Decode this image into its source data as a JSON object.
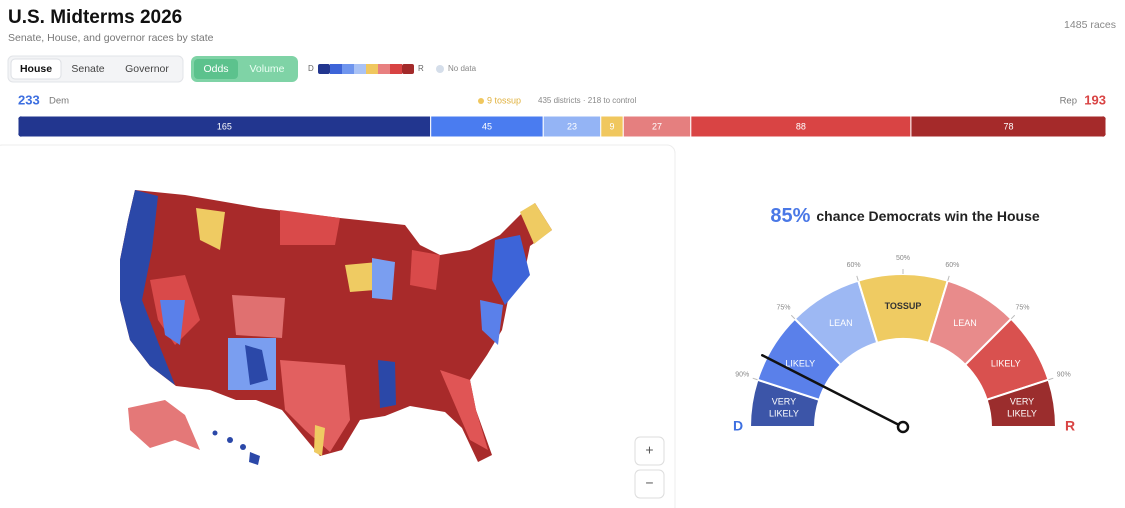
{
  "header": {
    "title": "U.S. Midterms 2026",
    "subtitle": "Senate, House, and governor races by state",
    "race_count": "1485 races"
  },
  "tabs": [
    "House",
    "Senate",
    "Governor"
  ],
  "mode_toggle": [
    "Odds",
    "Volume"
  ],
  "legend": {
    "left": "D",
    "right": "R",
    "colors": [
      "#22368f",
      "#3d64d8",
      "#6f95ee",
      "#a9c2f5",
      "#f0c75e",
      "#e88080",
      "#d84343",
      "#a32a2a"
    ],
    "no_data": "No data",
    "no_data_color": "#d5deea"
  },
  "summary": {
    "dem_count": 233,
    "dem_label": "Dem",
    "tossup": "9 tossup",
    "districts": "435 districts · 218 to control",
    "rep_label": "Rep",
    "rep_count": 193
  },
  "seat_bar": {
    "segments": [
      {
        "value": 165,
        "color": "#22368f"
      },
      {
        "value": 45,
        "color": "#4a7cf0"
      },
      {
        "value": 23,
        "color": "#94b4f5"
      },
      {
        "value": 9,
        "color": "#f0c75e"
      },
      {
        "value": 27,
        "color": "#e57f7f"
      },
      {
        "value": 88,
        "color": "#d94444"
      },
      {
        "value": 78,
        "color": "#a52a2a"
      }
    ]
  },
  "map_controls": [
    "+",
    "−"
  ],
  "gauge": {
    "probability": {
      "value": 85,
      "label": "85%"
    },
    "headline": "chance Democrats win the House",
    "segments": [
      {
        "lines": [
          "VERY",
          "LIKELY"
        ],
        "color": "#3c55a8"
      },
      {
        "lines": [
          "LIKELY"
        ],
        "color": "#5a80ea"
      },
      {
        "lines": [
          "LEAN"
        ],
        "color": "#9db8f3"
      },
      {
        "lines": [
          "TOSSUP"
        ],
        "color": "#efcb62"
      },
      {
        "lines": [
          "LEAN"
        ],
        "color": "#e88b8b"
      },
      {
        "lines": [
          "LIKELY"
        ],
        "color": "#d9514f"
      },
      {
        "lines": [
          "VERY",
          "LIKELY"
        ],
        "color": "#9b2d2d"
      }
    ],
    "ticks": [
      {
        "value": 90,
        "label": "90%"
      },
      {
        "value": 75,
        "label": "75%"
      },
      {
        "value": 60,
        "label": "60%"
      },
      {
        "value": 50,
        "label": "50%"
      },
      {
        "value": 60,
        "label": "60%"
      },
      {
        "value": 75,
        "label": "75%"
      },
      {
        "value": 90,
        "label": "90%"
      }
    ],
    "left_label": "D",
    "right_label": "R"
  }
}
